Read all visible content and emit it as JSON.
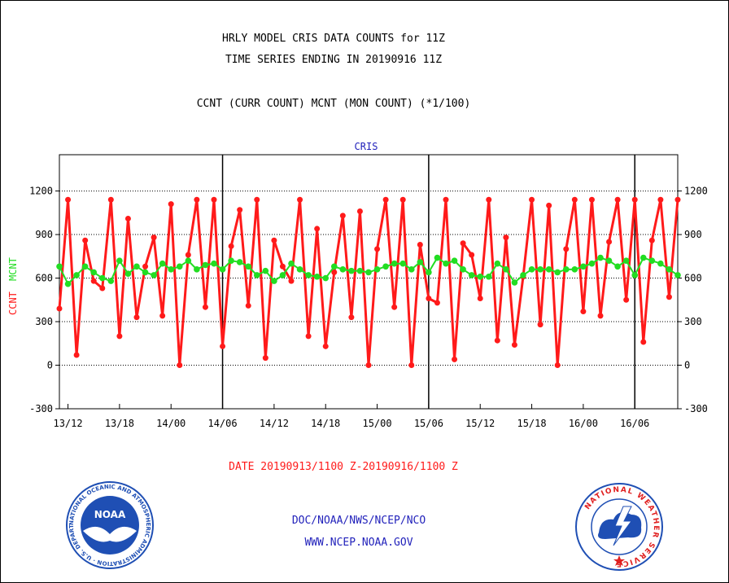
{
  "header": {
    "title_line1": "HRLY MODEL CRIS DATA COUNTS for 11Z",
    "title_line2": "TIME SERIES ENDING IN 20190916 11Z",
    "subtitle": "CCNT (CURR COUNT) MCNT (MON COUNT) (*1/100)"
  },
  "footer": {
    "date_range": "DATE 20190913/1100 Z-20190916/1100 Z",
    "org": "DOC/NOAA/NWS/NCEP/NCO",
    "url": "WWW.NCEP.NOAA.GOV"
  },
  "logos": {
    "noaa_label": "NOAA",
    "noaa_ring_text": "NATIONAL OCEANIC AND ATMOSPHERIC ADMINISTRATION · U.S. DEPARTMENT OF COMMERCE ·",
    "nws_ring_text": "NATIONAL WEATHER SERVICE"
  },
  "colors": {
    "ccnt": "#ff1a1a",
    "mcnt": "#22dd22",
    "title_text": "#000000",
    "footer_red": "#ff1a1a",
    "footer_blue": "#2222bb",
    "noaa_blue": "#1f4fb4"
  },
  "chart_data": {
    "type": "line",
    "title": "CRIS",
    "ylabel_left_1": "CCNT",
    "ylabel_left_2": "MCNT",
    "ylim": [
      -300,
      1450
    ],
    "yticks": [
      -300,
      0,
      300,
      600,
      900,
      1200
    ],
    "grid_y": [
      0,
      300,
      600,
      900,
      1200
    ],
    "day_dividers": [
      "14/06",
      "15/06",
      "16/06"
    ],
    "x_tick_labels": [
      "13/12",
      "13/18",
      "14/00",
      "14/06",
      "14/12",
      "14/18",
      "15/00",
      "15/06",
      "15/12",
      "15/18",
      "16/00",
      "16/06"
    ],
    "x_start": "13/11",
    "x_end": "16/11",
    "series": [
      {
        "name": "CCNT",
        "values": [
          390,
          1140,
          70,
          860,
          580,
          530,
          1140,
          200,
          1010,
          330,
          680,
          880,
          340,
          1110,
          0,
          760,
          1140,
          400,
          1140,
          130,
          820,
          1070,
          410,
          1140,
          50,
          860,
          680,
          580,
          1140,
          200,
          940,
          130,
          640,
          1030,
          330,
          1060,
          0,
          800,
          1140,
          400,
          1140,
          0,
          830,
          460,
          430,
          1140,
          40,
          840,
          760,
          460,
          1140,
          170,
          880,
          140,
          610,
          1140,
          280,
          1100,
          0,
          800,
          1140,
          370,
          1140,
          340,
          850,
          1140,
          450,
          1140,
          160,
          860,
          1140,
          470,
          1140
        ]
      },
      {
        "name": "MCNT",
        "values": [
          680,
          560,
          620,
          680,
          640,
          600,
          580,
          720,
          630,
          680,
          640,
          620,
          700,
          660,
          680,
          720,
          660,
          690,
          700,
          660,
          720,
          710,
          680,
          620,
          650,
          580,
          620,
          700,
          660,
          620,
          610,
          600,
          680,
          660,
          650,
          650,
          640,
          660,
          680,
          700,
          700,
          660,
          710,
          640,
          740,
          700,
          720,
          660,
          620,
          610,
          610,
          700,
          660,
          570,
          620,
          660,
          660,
          660,
          640,
          660,
          660,
          680,
          700,
          740,
          720,
          680,
          720,
          620,
          740,
          720,
          700,
          660,
          620
        ]
      }
    ]
  }
}
